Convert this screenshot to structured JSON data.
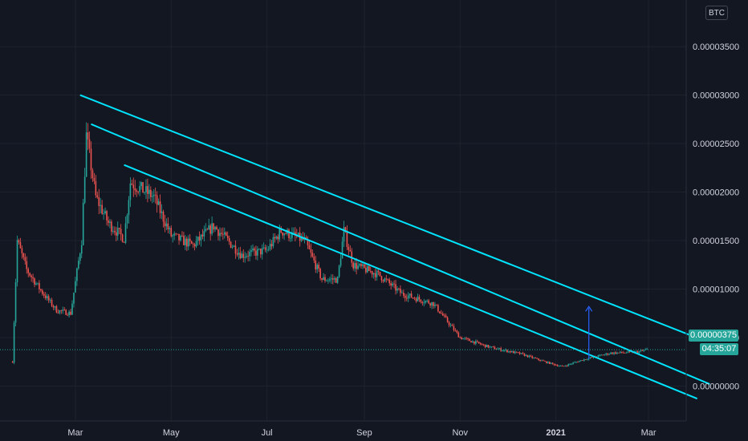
{
  "currency": "BTC",
  "current_price_label": "0.00000375",
  "countdown": "04:35:07",
  "colors": {
    "background": "#131722",
    "grid": "#1e222d",
    "up": "#26a69a",
    "down": "#ef5350",
    "trendline": "#00e5ff",
    "measure_arrow": "#2962ff"
  },
  "chart_data": {
    "type": "candlestick",
    "title": "",
    "xlabel": "",
    "ylabel": "",
    "ylim": [
      -1.3e-06,
      3.8e-06
    ],
    "y_ticks": [
      "0.00000000",
      "0.00000500",
      "0.00001000",
      "0.00001500",
      "0.00002000",
      "0.00002500",
      "0.00003000",
      "0.00003500"
    ],
    "y_tick_values": [
      0,
      5e-06,
      1e-05,
      1.5e-05,
      2e-05,
      2.5e-05,
      3e-05,
      3.5e-05
    ],
    "x_ticks": [
      "Mar",
      "May",
      "Jul",
      "Sep",
      "Nov",
      "2021",
      "Mar"
    ],
    "x_tick_dates": [
      "2020-03-01",
      "2020-05-01",
      "2020-07-01",
      "2020-09-01",
      "2020-11-01",
      "2021-01-01",
      "2021-03-01"
    ],
    "x_range": [
      "2020-01-20",
      "2021-03-20"
    ],
    "grid": true,
    "current_price": 3.75e-06,
    "anchors": [
      [
        "2020-01-21",
        2.5e-06
      ],
      [
        "2020-01-24",
        1.5e-05
      ],
      [
        "2020-01-30",
        1.2e-05
      ],
      [
        "2020-02-08",
        9.85e-06
      ],
      [
        "2020-02-18",
        7.8e-06
      ],
      [
        "2020-02-27",
        7.5e-06
      ],
      [
        "2020-03-05",
        1.5e-05
      ],
      [
        "2020-03-08",
        2.58e-05
      ],
      [
        "2020-03-14",
        1.95e-05
      ],
      [
        "2020-03-22",
        1.68e-05
      ],
      [
        "2020-04-01",
        1.52e-05
      ],
      [
        "2020-04-05",
        2.1e-05
      ],
      [
        "2020-04-20",
        1.95e-05
      ],
      [
        "2020-05-01",
        1.55e-05
      ],
      [
        "2020-05-15",
        1.45e-05
      ],
      [
        "2020-05-28",
        1.65e-05
      ],
      [
        "2020-06-15",
        1.35e-05
      ],
      [
        "2020-07-01",
        1.4e-05
      ],
      [
        "2020-07-10",
        1.6e-05
      ],
      [
        "2020-07-25",
        1.5e-05
      ],
      [
        "2020-08-05",
        1.1e-05
      ],
      [
        "2020-08-15",
        1.1e-05
      ],
      [
        "2020-08-19",
        1.6e-05
      ],
      [
        "2020-08-25",
        1.25e-05
      ],
      [
        "2020-09-10",
        1.15e-05
      ],
      [
        "2020-09-25",
        9.5e-06
      ],
      [
        "2020-10-15",
        8.5e-06
      ],
      [
        "2020-11-01",
        5e-06
      ],
      [
        "2020-11-20",
        4e-06
      ],
      [
        "2020-12-10",
        3.3e-06
      ],
      [
        "2020-12-25",
        2.5e-06
      ],
      [
        "2021-01-05",
        2e-06
      ],
      [
        "2021-01-20",
        2.8e-06
      ],
      [
        "2021-02-05",
        3.4e-06
      ],
      [
        "2021-02-22",
        3.5e-06
      ],
      [
        "2021-02-28",
        3.75e-06
      ]
    ],
    "trendlines": [
      {
        "name": "upper",
        "from": [
          "2020-03-04",
          3e-05
        ],
        "to": [
          "2021-04-02",
          4.9e-06
        ]
      },
      {
        "name": "middle",
        "from": [
          "2020-03-11",
          2.7e-05
        ],
        "to": [
          "2021-04-09",
          2e-07
        ]
      },
      {
        "name": "lower",
        "from": [
          "2020-04-01",
          2.28e-05
        ],
        "to": [
          "2021-04-01",
          -1.3e-06
        ]
      }
    ],
    "measure_arrow": {
      "date": "2021-01-22",
      "from": 2.8e-06,
      "to": 8.2e-06
    }
  }
}
